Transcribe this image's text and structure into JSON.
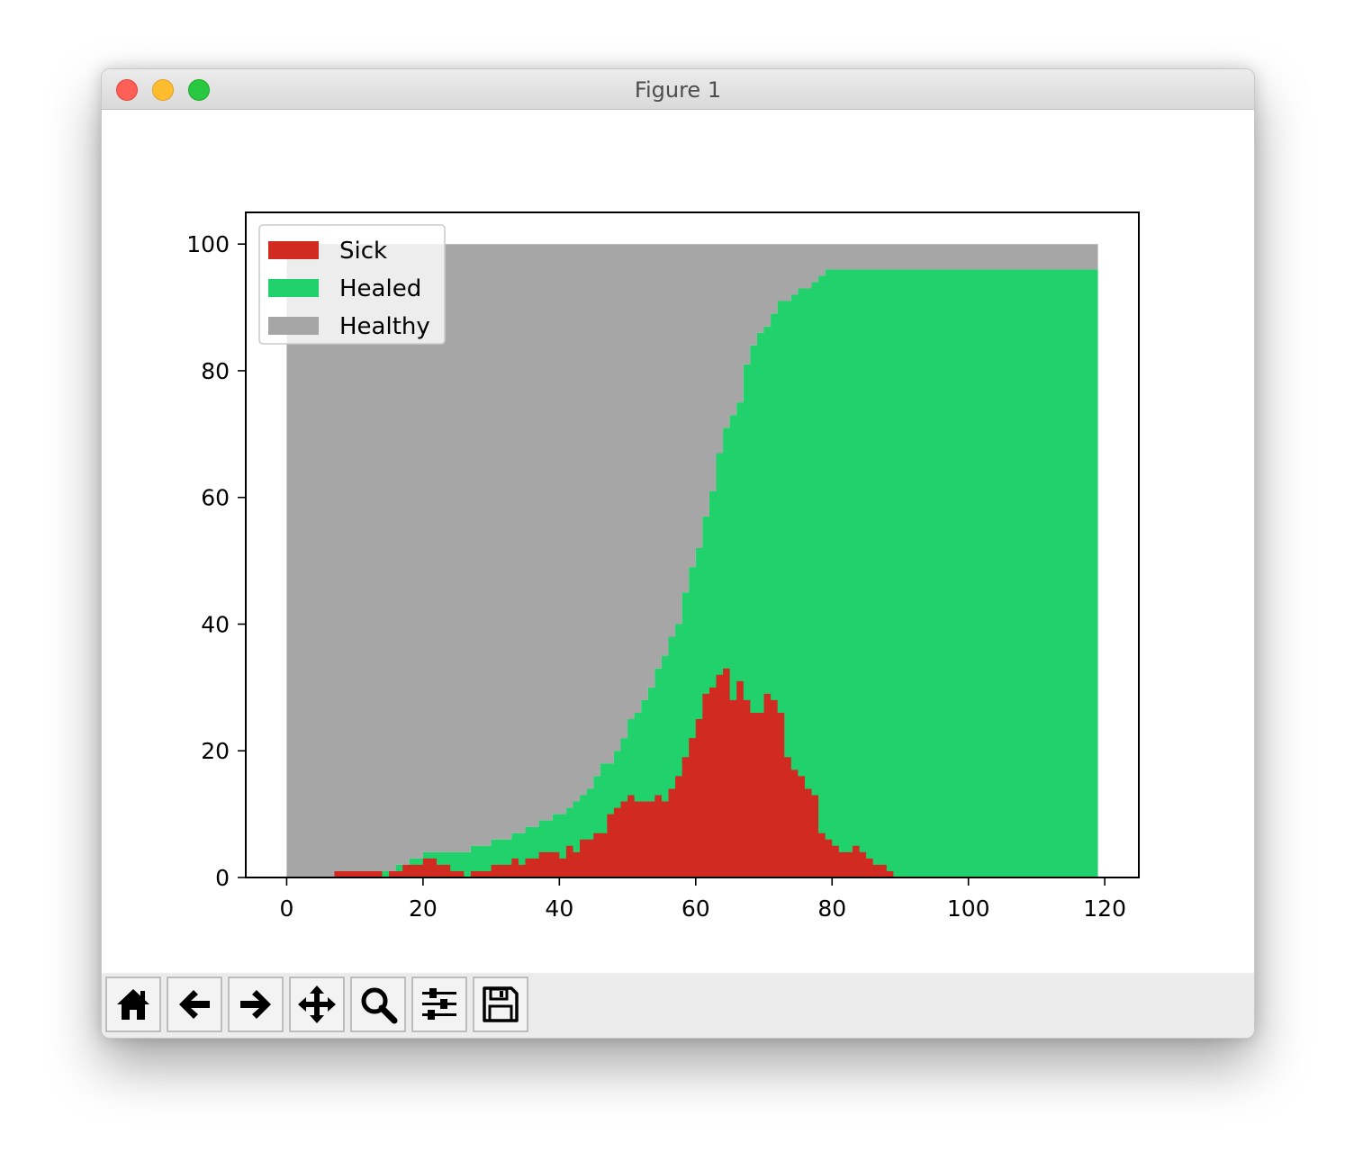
{
  "window": {
    "title": "Figure 1"
  },
  "toolbar": {
    "buttons": [
      {
        "name": "home-button",
        "icon": "home-icon"
      },
      {
        "name": "back-button",
        "icon": "arrow-left-icon"
      },
      {
        "name": "forward-button",
        "icon": "arrow-right-icon"
      },
      {
        "name": "pan-button",
        "icon": "move-icon"
      },
      {
        "name": "zoom-button",
        "icon": "magnifier-icon"
      },
      {
        "name": "configure-subplots-button",
        "icon": "sliders-icon"
      },
      {
        "name": "save-button",
        "icon": "floppy-disk-icon"
      }
    ]
  },
  "chart_data": {
    "type": "area",
    "stacked": true,
    "step": true,
    "xlim": [
      -6,
      125
    ],
    "ylim": [
      0,
      105
    ],
    "xticks": [
      0,
      20,
      40,
      60,
      80,
      100,
      120
    ],
    "yticks": [
      0,
      20,
      40,
      60,
      80,
      100
    ],
    "legend_position": "top-left",
    "grid": false,
    "series": [
      {
        "name": "Sick",
        "color": "#d12a20",
        "points": [
          [
            0,
            0
          ],
          [
            7,
            1
          ],
          [
            14,
            0
          ],
          [
            15,
            1
          ],
          [
            17,
            2
          ],
          [
            20,
            3
          ],
          [
            22,
            2
          ],
          [
            24,
            1
          ],
          [
            26,
            0
          ],
          [
            27,
            1
          ],
          [
            30,
            2
          ],
          [
            33,
            3
          ],
          [
            34,
            2
          ],
          [
            35,
            3
          ],
          [
            37,
            4
          ],
          [
            40,
            3
          ],
          [
            41,
            5
          ],
          [
            42,
            4
          ],
          [
            43,
            6
          ],
          [
            45,
            7
          ],
          [
            47,
            10
          ],
          [
            48,
            11
          ],
          [
            49,
            12
          ],
          [
            50,
            13
          ],
          [
            51,
            12
          ],
          [
            53,
            12
          ],
          [
            54,
            13
          ],
          [
            55,
            12
          ],
          [
            56,
            14
          ],
          [
            57,
            16
          ],
          [
            58,
            19
          ],
          [
            59,
            22
          ],
          [
            60,
            25
          ],
          [
            61,
            29
          ],
          [
            62,
            30
          ],
          [
            63,
            32
          ],
          [
            64,
            33
          ],
          [
            65,
            28
          ],
          [
            66,
            31
          ],
          [
            67,
            28
          ],
          [
            68,
            26
          ],
          [
            69,
            26
          ],
          [
            70,
            29
          ],
          [
            71,
            28
          ],
          [
            72,
            26
          ],
          [
            73,
            19
          ],
          [
            74,
            17
          ],
          [
            75,
            16
          ],
          [
            76,
            14
          ],
          [
            77,
            13
          ],
          [
            78,
            7
          ],
          [
            79,
            6
          ],
          [
            80,
            5
          ],
          [
            81,
            4
          ],
          [
            82,
            4
          ],
          [
            83,
            5
          ],
          [
            84,
            4
          ],
          [
            85,
            3
          ],
          [
            86,
            2
          ],
          [
            87,
            2
          ],
          [
            88,
            1
          ],
          [
            89,
            0
          ],
          [
            119,
            0
          ]
        ]
      },
      {
        "name": "Healed",
        "color": "#21d16b",
        "cumulative_top": [
          [
            0,
            0
          ],
          [
            14,
            1
          ],
          [
            16,
            2
          ],
          [
            18,
            3
          ],
          [
            20,
            4
          ],
          [
            27,
            5
          ],
          [
            30,
            6
          ],
          [
            33,
            7
          ],
          [
            35,
            8
          ],
          [
            37,
            9
          ],
          [
            39,
            10
          ],
          [
            41,
            11
          ],
          [
            42,
            12
          ],
          [
            43,
            13
          ],
          [
            44,
            14
          ],
          [
            45,
            16
          ],
          [
            46,
            18
          ],
          [
            48,
            20
          ],
          [
            49,
            22
          ],
          [
            50,
            25
          ],
          [
            51,
            26
          ],
          [
            52,
            28
          ],
          [
            53,
            30
          ],
          [
            54,
            33
          ],
          [
            55,
            35
          ],
          [
            56,
            38
          ],
          [
            57,
            40
          ],
          [
            58,
            45
          ],
          [
            59,
            49
          ],
          [
            60,
            52
          ],
          [
            61,
            57
          ],
          [
            62,
            61
          ],
          [
            63,
            67
          ],
          [
            64,
            71
          ],
          [
            65,
            73
          ],
          [
            66,
            75
          ],
          [
            67,
            81
          ],
          [
            68,
            84
          ],
          [
            69,
            86
          ],
          [
            70,
            87
          ],
          [
            71,
            89
          ],
          [
            72,
            91
          ],
          [
            74,
            92
          ],
          [
            75,
            93
          ],
          [
            77,
            94
          ],
          [
            78,
            95
          ],
          [
            79,
            96
          ],
          [
            119,
            96
          ]
        ]
      },
      {
        "name": "Healthy",
        "color": "#a6a6a6",
        "total": 100,
        "x_range": [
          0,
          119
        ]
      }
    ]
  }
}
